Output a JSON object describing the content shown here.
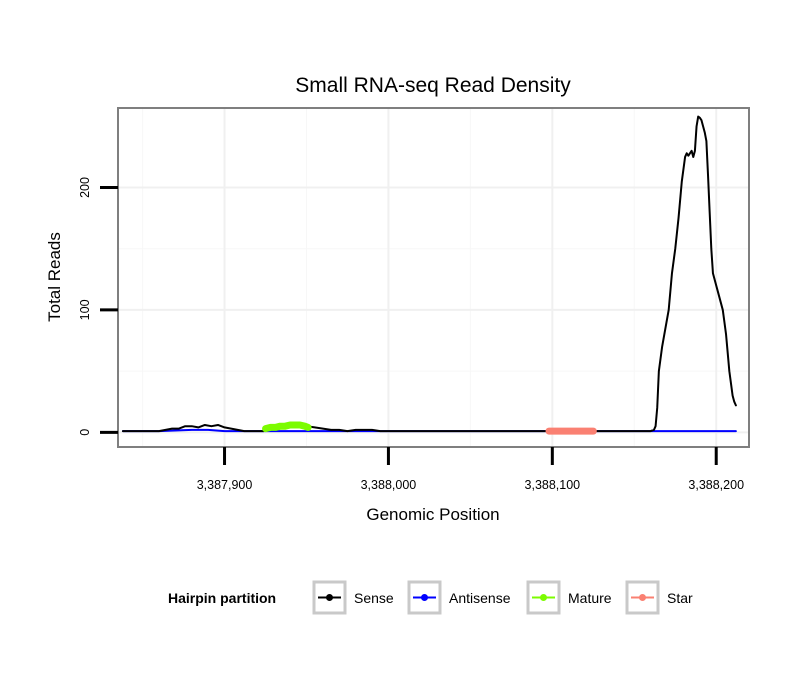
{
  "chart_data": {
    "type": "line",
    "title": "Small RNA-seq Read Density",
    "xlabel": "Genomic Position",
    "ylabel": "Total Reads",
    "xlim": [
      3387835,
      3388220
    ],
    "ylim": [
      -12,
      265
    ],
    "x_ticks": [
      3387900,
      3388000,
      3388100,
      3388200
    ],
    "x_tick_labels": [
      "3,387,900",
      "3,388,000",
      "3,388,100",
      "3,388,200"
    ],
    "y_ticks": [
      0,
      100,
      200
    ],
    "y_tick_labels": [
      "0",
      "100",
      "200"
    ],
    "grid": true,
    "legend": {
      "title": "Hairpin partition",
      "position": "bottom",
      "entries": [
        {
          "label": "Sense",
          "color": "#000000"
        },
        {
          "label": "Antisense",
          "color": "#0000ff"
        },
        {
          "label": "Mature",
          "color": "#7cfc00"
        },
        {
          "label": "Star",
          "color": "#fa8072"
        }
      ]
    },
    "series": [
      {
        "name": "Sense",
        "color": "#000000",
        "x": [
          3387838,
          3387855,
          3387860,
          3387864,
          3387868,
          3387872,
          3387876,
          3387880,
          3387884,
          3387888,
          3387892,
          3387896,
          3387900,
          3387904,
          3387908,
          3387912,
          3387916,
          3387920,
          3387924,
          3387930,
          3387940,
          3387950,
          3387955,
          3387960,
          3387965,
          3387970,
          3387975,
          3387980,
          3387985,
          3387990,
          3387995,
          3388000,
          3388050,
          3388100,
          3388150,
          3388160,
          3388162,
          3388163,
          3388164,
          3388165,
          3388167,
          3388169,
          3388171,
          3388173,
          3388175,
          3388177,
          3388179,
          3388181,
          3388182,
          3388183,
          3388185,
          3388186,
          3388187,
          3388188,
          3388189,
          3388190,
          3388191,
          3388192,
          3388193,
          3388194,
          3388195,
          3388196,
          3388197,
          3388198,
          3388199,
          3388200,
          3388201,
          3388202,
          3388203,
          3388204,
          3388205,
          3388206,
          3388207,
          3388208,
          3388209,
          3388210,
          3388211,
          3388212
        ],
        "values": [
          1,
          1,
          1,
          2,
          3,
          3,
          5,
          5,
          4,
          6,
          5,
          6,
          4,
          3,
          2,
          1,
          1,
          1,
          1,
          3,
          4,
          5,
          4,
          3,
          2,
          2,
          1,
          2,
          2,
          2,
          1,
          1,
          1,
          1,
          1,
          1,
          2,
          5,
          20,
          50,
          70,
          85,
          100,
          130,
          150,
          175,
          205,
          225,
          228,
          226,
          230,
          225,
          230,
          250,
          258,
          257,
          255,
          250,
          245,
          238,
          210,
          180,
          150,
          130,
          125,
          120,
          115,
          110,
          105,
          100,
          90,
          80,
          65,
          50,
          40,
          30,
          25,
          22
        ]
      },
      {
        "name": "Antisense",
        "color": "#0000ff",
        "x": [
          3387838,
          3387860,
          3387880,
          3387890,
          3387900,
          3387910,
          3387920,
          3387940,
          3387960,
          3387980,
          3388000,
          3388100,
          3388212
        ],
        "values": [
          1,
          1,
          2,
          2,
          1,
          1,
          1,
          1,
          1,
          1,
          1,
          1,
          1
        ]
      },
      {
        "name": "Mature",
        "color": "#7cfc00",
        "x": [
          3387925,
          3387928,
          3387931,
          3387934,
          3387937,
          3387940,
          3387943,
          3387946,
          3387949,
          3387951
        ],
        "values": [
          3,
          4,
          4,
          5,
          5,
          6,
          6,
          6,
          5,
          4
        ]
      },
      {
        "name": "Star",
        "color": "#fa8072",
        "x": [
          3388098,
          3388101,
          3388104,
          3388107,
          3388110,
          3388113,
          3388116,
          3388119,
          3388122,
          3388125
        ],
        "values": [
          1,
          1,
          1,
          1,
          1,
          1,
          1,
          1,
          1,
          1
        ]
      }
    ]
  }
}
